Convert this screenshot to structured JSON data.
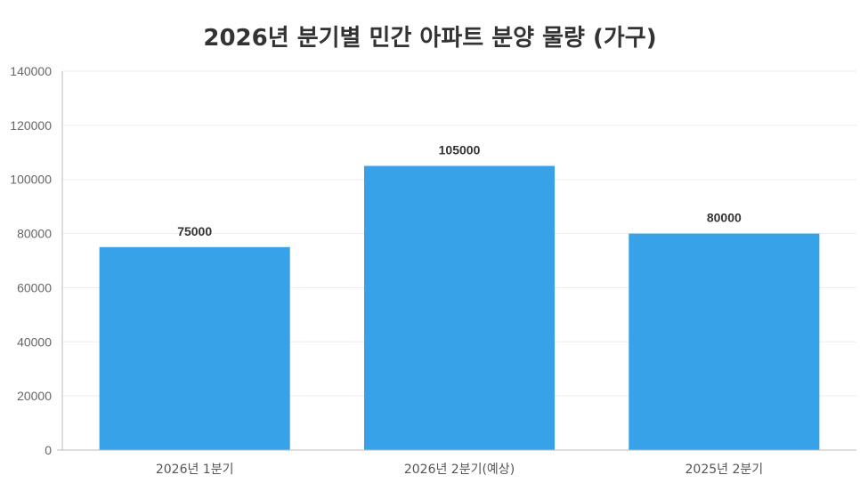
{
  "chart_data": {
    "type": "bar",
    "title": "2026년 분기별 민간 아파트 분양 물량 (가구)",
    "xlabel": "",
    "ylabel": "",
    "categories": [
      "2026년 1분기",
      "2026년 2분기(예상)",
      "2025년 2분기"
    ],
    "values": [
      75000,
      105000,
      80000
    ],
    "data_labels": [
      "75000",
      "105000",
      "80000"
    ],
    "ylim": [
      0,
      140000
    ],
    "yticks": [
      0,
      20000,
      40000,
      60000,
      80000,
      100000,
      120000,
      140000
    ],
    "ytick_labels": [
      "0",
      "20000",
      "40000",
      "60000",
      "80000",
      "100000",
      "120000",
      "140000"
    ],
    "grid": true,
    "legend": "none",
    "colors": {
      "bar": "#38a2e9",
      "grid": "#eeeeee",
      "axis": "#bbbbbb"
    }
  }
}
